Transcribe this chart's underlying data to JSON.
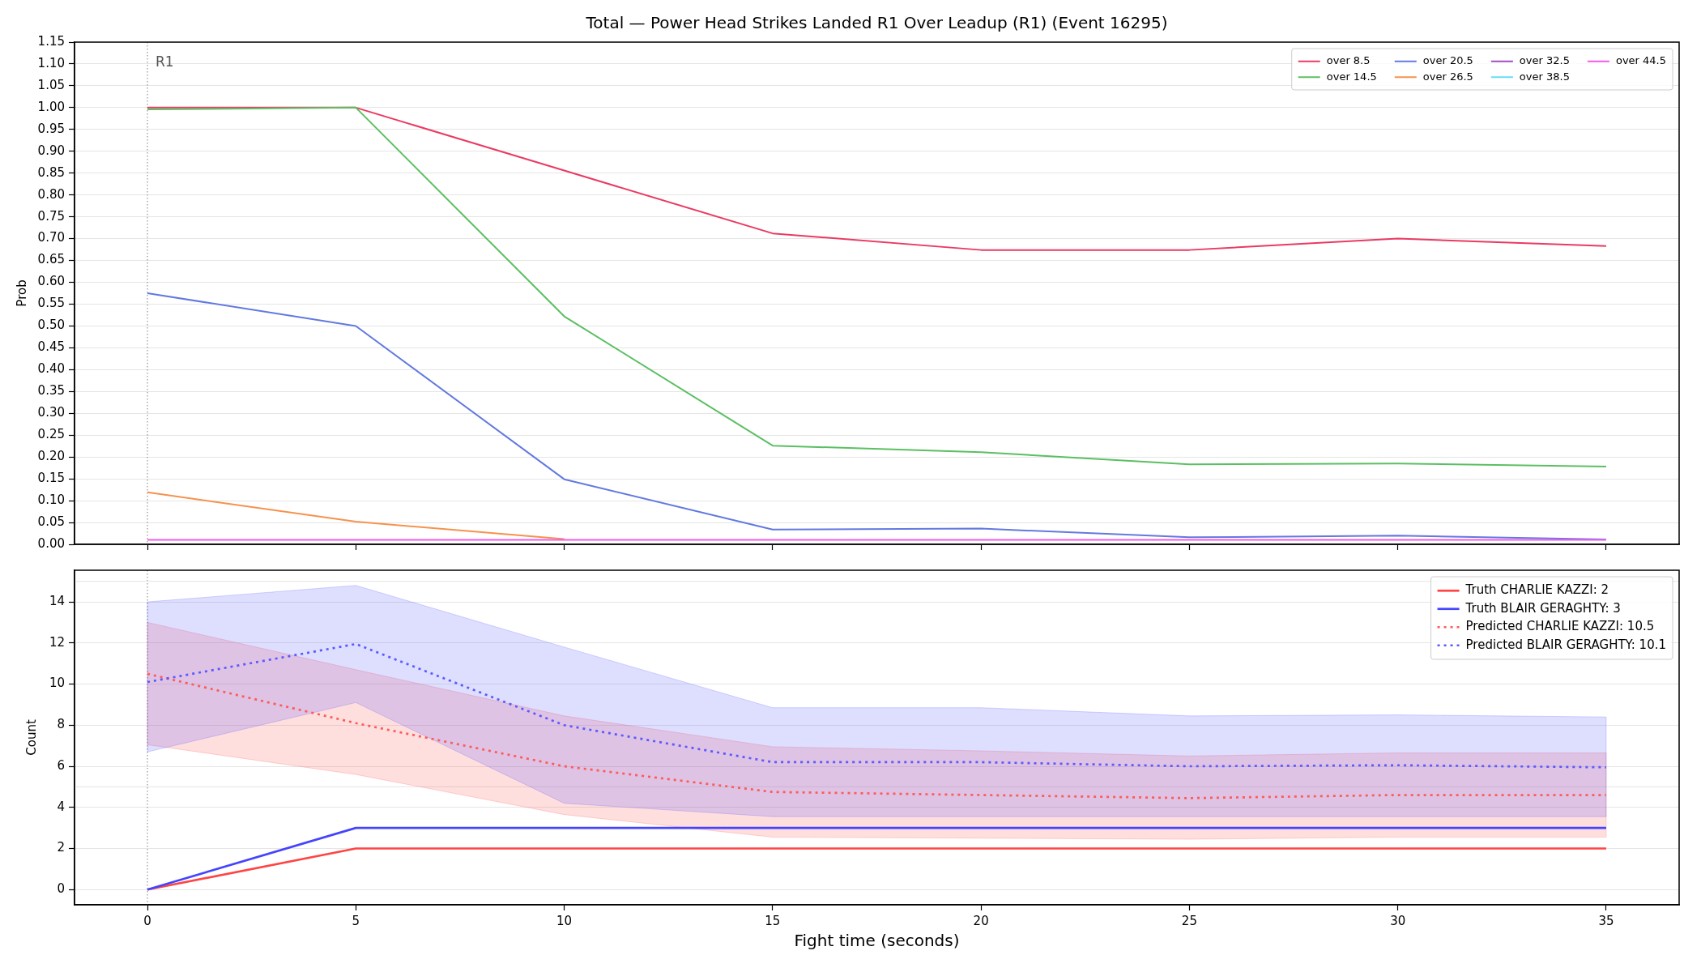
{
  "chart_data": [
    {
      "type": "line",
      "title": "Total — Power Head Strikes Landed R1 Over Leadup (R1) (Event 16295)",
      "ylabel": "Prob",
      "x": [
        0,
        5,
        10,
        15,
        20,
        25,
        30,
        35
      ],
      "series": [
        {
          "name": "over 8.5",
          "color": "#ea3a62",
          "values": [
            1.0,
            1.0,
            0.856,
            0.712,
            0.674,
            0.674,
            0.7,
            0.683
          ]
        },
        {
          "name": "over 14.5",
          "color": "#5bbf62",
          "values": [
            0.996,
            1.0,
            0.522,
            0.226,
            0.211,
            0.183,
            0.185,
            0.178
          ]
        },
        {
          "name": "over 20.5",
          "color": "#6279e0",
          "values": [
            0.575,
            0.5,
            0.149,
            0.034,
            0.036,
            0.016,
            0.02,
            0.011
          ]
        },
        {
          "name": "over 26.5",
          "color": "#f6924e",
          "values": [
            0.119,
            0.052,
            0.012,
            null,
            null,
            null,
            null,
            null
          ]
        },
        {
          "name": "over 32.5",
          "color": "#a24bc3",
          "values": [
            null,
            null,
            null,
            null,
            null,
            null,
            null,
            null
          ]
        },
        {
          "name": "over 38.5",
          "color": "#65dcf6",
          "values": [
            null,
            null,
            null,
            null,
            null,
            null,
            null,
            null
          ]
        },
        {
          "name": "over 44.5",
          "color": "#f25aea",
          "values": [
            0.01,
            0.01,
            0.01,
            0.01,
            0.01,
            0.01,
            0.01,
            0.01
          ]
        }
      ],
      "xlim": [
        -1.75,
        36.75
      ],
      "ylim": [
        0,
        1.15
      ],
      "xticks": [
        0,
        5,
        10,
        15,
        20,
        25,
        30,
        35
      ],
      "yticks": [
        {
          "value": 0,
          "label": "0.00"
        },
        {
          "value": 0.05,
          "label": "0.05"
        },
        {
          "value": 0.1,
          "label": "0.10"
        },
        {
          "value": 0.15,
          "label": "0.15"
        },
        {
          "value": 0.2,
          "label": "0.20"
        },
        {
          "value": 0.25,
          "label": "0.25"
        },
        {
          "value": 0.3,
          "label": "0.30"
        },
        {
          "value": 0.35,
          "label": "0.35"
        },
        {
          "value": 0.4,
          "label": "0.40"
        },
        {
          "value": 0.45,
          "label": "0.45"
        },
        {
          "value": 0.5,
          "label": "0.50"
        },
        {
          "value": 0.55,
          "label": "0.55"
        },
        {
          "value": 0.6,
          "label": "0.60"
        },
        {
          "value": 0.65,
          "label": "0.65"
        },
        {
          "value": 0.7,
          "label": "0.70"
        },
        {
          "value": 0.75,
          "label": "0.75"
        },
        {
          "value": 0.8,
          "label": "0.80"
        },
        {
          "value": 0.85,
          "label": "0.85"
        },
        {
          "value": 0.9,
          "label": "0.90"
        },
        {
          "value": 0.95,
          "label": "0.95"
        },
        {
          "value": 1,
          "label": "1.00"
        },
        {
          "value": 1.05,
          "label": "1.05"
        },
        {
          "value": 1.1,
          "label": "1.10"
        },
        {
          "value": 1.15,
          "label": "1.15"
        }
      ],
      "tick_labels": "y",
      "grid": "y",
      "legend": "top right",
      "ref_lines": [
        {
          "axis": "x",
          "value": 0,
          "label": "R1",
          "color": "#808080",
          "line_style": "dotted"
        }
      ]
    },
    {
      "type": "line",
      "xlabel": "Fight time (seconds)",
      "ylabel": "Count",
      "x": [
        0,
        5,
        10,
        15,
        20,
        25,
        30,
        35
      ],
      "series": [
        {
          "name": "Truth CHARLIE KAZZI: 2",
          "color": "#ff4444",
          "line_style": "solid",
          "values": [
            0,
            2,
            2,
            2,
            2,
            2,
            2,
            2
          ]
        },
        {
          "name": "Truth BLAIR GERAGHTY: 3",
          "color": "#4444ff",
          "line_style": "solid",
          "values": [
            0,
            3,
            3,
            3,
            3,
            3,
            3,
            3
          ]
        },
        {
          "name": "Predicted CHARLIE KAZZI: 10.5",
          "color": "#ff5a5a",
          "line_style": "dotted",
          "values": [
            10.5,
            8.1,
            6.0,
            4.75,
            4.6,
            4.45,
            4.6,
            4.6
          ],
          "lower": [
            7.05,
            5.6,
            3.65,
            2.55,
            2.5,
            2.45,
            2.55,
            2.55
          ],
          "upper": [
            13.0,
            10.7,
            8.45,
            6.95,
            6.75,
            6.5,
            6.65,
            6.65
          ]
        },
        {
          "name": "Predicted BLAIR GERAGHTY: 10.1",
          "color": "#5a5aff",
          "line_style": "dotted",
          "values": [
            10.1,
            11.95,
            8.0,
            6.2,
            6.2,
            6.0,
            6.05,
            5.95
          ],
          "lower": [
            6.7,
            9.1,
            4.2,
            3.55,
            3.55,
            3.55,
            3.55,
            3.55
          ],
          "upper": [
            14.0,
            14.8,
            11.8,
            8.85,
            8.85,
            8.45,
            8.5,
            8.4
          ]
        }
      ],
      "xlim": [
        -1.75,
        36.75
      ],
      "ylim": [
        -0.74,
        15.54
      ],
      "xticks": [
        0,
        5,
        10,
        15,
        20,
        25,
        30,
        35
      ],
      "yticks": [
        0,
        2,
        4,
        6,
        8,
        10,
        12,
        14
      ],
      "grid": "y",
      "legend": "top right",
      "ref_lines": [
        {
          "axis": "x",
          "value": 0,
          "color": "#808080",
          "line_style": "dotted"
        },
        {
          "axis": "y",
          "value": 5,
          "color": "#e5e5e5"
        },
        {
          "axis": "y",
          "value": 15,
          "color": "#e5e5e5"
        }
      ]
    }
  ]
}
